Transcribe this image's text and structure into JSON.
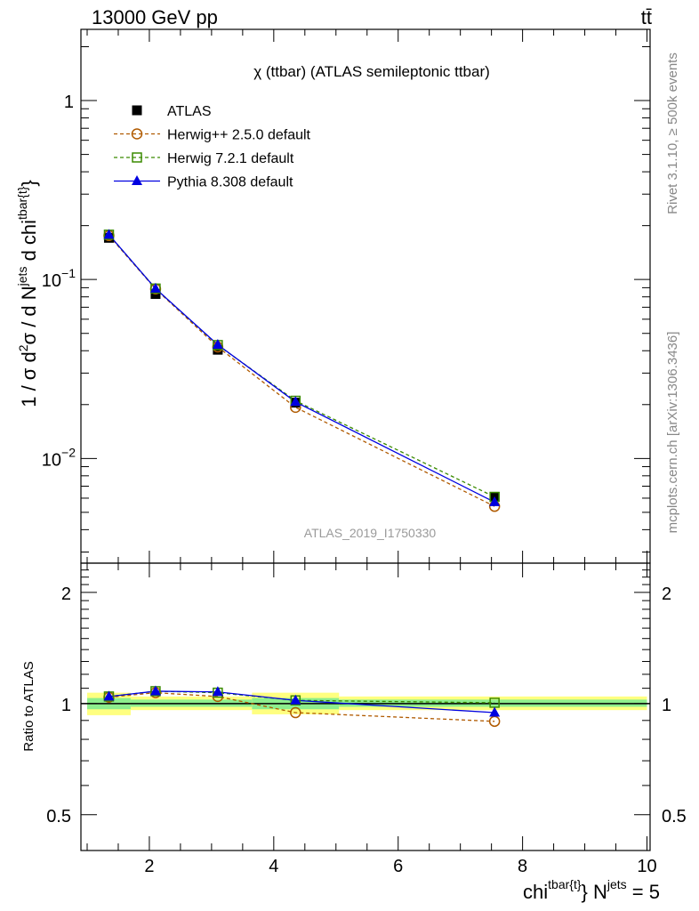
{
  "header": {
    "left": "13000 GeV pp",
    "right": "tt̄"
  },
  "side_labels": {
    "right_top": "Rivet 3.1.10, ≥ 500k events",
    "right_bottom": "mcplots.cern.ch [arXiv:1306.3436]"
  },
  "chart_data": [
    {
      "type": "line",
      "panel": "main",
      "title": "χ (ttbar) (ATLAS semileptonic ttbar)",
      "watermark": "ATLAS_2019_I1750330",
      "ylabel": "1 / σ d²σ / d N^jets d chi^tbar{t}",
      "yscale": "log",
      "ylim": [
        0.0026,
        2.5
      ],
      "y_ticks": [
        {
          "value": 1,
          "label": "1"
        },
        {
          "value": 0.1,
          "label": "10",
          "sup": "−1"
        },
        {
          "value": 0.01,
          "label": "10",
          "sup": "−2"
        }
      ],
      "xlim": [
        0.9,
        10.05
      ],
      "legend_position": "top-left",
      "series": [
        {
          "name": "ATLAS",
          "color": "#000000",
          "marker": "square-filled",
          "style": "points",
          "x": [
            1.35,
            2.1,
            3.1,
            4.35,
            7.55
          ],
          "y": [
            0.171,
            0.083,
            0.0405,
            0.0205,
            0.0061
          ]
        },
        {
          "name": "Herwig++ 2.5.0 default",
          "color": "#b05a00",
          "marker": "circle-open",
          "style": "dashed",
          "x": [
            1.35,
            2.1,
            3.1,
            4.35,
            7.55
          ],
          "y": [
            0.176,
            0.0885,
            0.042,
            0.0193,
            0.0054
          ]
        },
        {
          "name": "Herwig 7.2.1 default",
          "color": "#3a8a00",
          "marker": "square-open",
          "style": "dashed",
          "x": [
            1.35,
            2.1,
            3.1,
            4.35,
            7.55
          ],
          "y": [
            0.178,
            0.089,
            0.043,
            0.021,
            0.0061
          ]
        },
        {
          "name": "Pythia 8.308 default",
          "color": "#0000e0",
          "marker": "triangle-filled",
          "style": "solid",
          "x": [
            1.35,
            2.1,
            3.1,
            4.35,
            7.55
          ],
          "y": [
            0.178,
            0.089,
            0.0432,
            0.0207,
            0.0057
          ]
        }
      ]
    },
    {
      "type": "line",
      "panel": "ratio",
      "ylabel": "Ratio to ATLAS",
      "yscale": "log",
      "ylim": [
        0.4,
        2.4
      ],
      "y_ticks": [
        {
          "value": 2,
          "label": "2"
        },
        {
          "value": 1,
          "label": "1"
        },
        {
          "value": 0.5,
          "label": "0.5"
        }
      ],
      "xlim": [
        0.9,
        10.05
      ],
      "x_ticks": [
        {
          "value": 2,
          "label": "2"
        },
        {
          "value": 4,
          "label": "4"
        },
        {
          "value": 6,
          "label": "6"
        },
        {
          "value": 8,
          "label": "8"
        },
        {
          "value": 10,
          "label": "10"
        }
      ],
      "xlabel": "chi^tbar{t} N^jets = 5",
      "bands": [
        {
          "xlo": 1.0,
          "xhi": 1.7,
          "outer": [
            0.93,
            1.07
          ],
          "inner": [
            0.965,
            1.035
          ]
        },
        {
          "xlo": 1.7,
          "xhi": 3.65,
          "outer": [
            0.96,
            1.045
          ],
          "inner": [
            0.98,
            1.025
          ]
        },
        {
          "xlo": 3.65,
          "xhi": 5.05,
          "outer": [
            0.935,
            1.07
          ],
          "inner": [
            0.965,
            1.035
          ]
        },
        {
          "xlo": 5.05,
          "xhi": 10.0,
          "outer": [
            0.96,
            1.045
          ],
          "inner": [
            0.98,
            1.025
          ]
        }
      ],
      "series": [
        {
          "name": "Herwig++ 2.5.0 default",
          "color": "#b05a00",
          "marker": "circle-open",
          "style": "dashed",
          "x": [
            1.35,
            2.1,
            3.1,
            4.35,
            7.55
          ],
          "y": [
            1.04,
            1.07,
            1.045,
            0.945,
            0.895
          ]
        },
        {
          "name": "Herwig 7.2.1 default",
          "color": "#3a8a00",
          "marker": "square-open",
          "style": "dashed",
          "x": [
            1.35,
            2.1,
            3.1,
            4.35,
            7.55
          ],
          "y": [
            1.045,
            1.08,
            1.07,
            1.02,
            1.005
          ]
        },
        {
          "name": "Pythia 8.308 default",
          "color": "#0000e0",
          "marker": "triangle-filled",
          "style": "solid",
          "x": [
            1.35,
            2.1,
            3.1,
            4.35,
            7.55
          ],
          "y": [
            1.045,
            1.08,
            1.075,
            1.02,
            0.945
          ]
        }
      ]
    }
  ]
}
